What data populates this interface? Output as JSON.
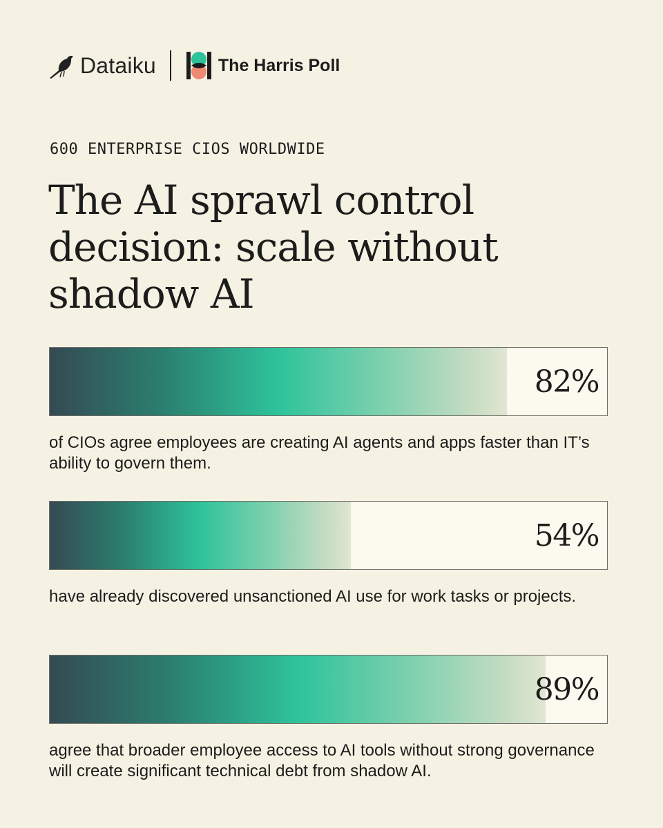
{
  "brand": {
    "primary": "Dataiku",
    "partner": "The Harris Poll"
  },
  "eyebrow": "600 ENTERPRISE CIOS WORLDWIDE",
  "title": "The AI sprawl control decision: scale without shadow AI",
  "colors": {
    "background": "#f6f2e3",
    "bar_dark": "#354a54",
    "bar_teal": "#2ec39b",
    "harris_teal": "#2ec39b",
    "harris_coral": "#ee8a72"
  },
  "stats": [
    {
      "value_label": "82%",
      "caption": "of CIOs agree employees are creating AI agents and apps faster than IT’s ability to govern them."
    },
    {
      "value_label": "54%",
      "caption": "have already discovered unsanctioned AI use for work tasks or projects."
    },
    {
      "value_label": "89%",
      "caption": "agree that broader employee access to AI tools without strong governance will create significant technical debt from shadow AI."
    }
  ],
  "chart_data": {
    "type": "bar",
    "orientation": "horizontal",
    "categories": [
      "of CIOs agree employees are creating AI agents and apps faster than IT’s ability to govern them.",
      "have already discovered unsanctioned AI use for work tasks or projects.",
      "agree that broader employee access to AI tools without strong governance will create significant technical debt from shadow AI."
    ],
    "values": [
      82,
      54,
      89
    ],
    "unit": "%",
    "xlim": [
      0,
      100
    ],
    "title": "The AI sprawl control decision: scale without shadow AI",
    "grid": false
  }
}
